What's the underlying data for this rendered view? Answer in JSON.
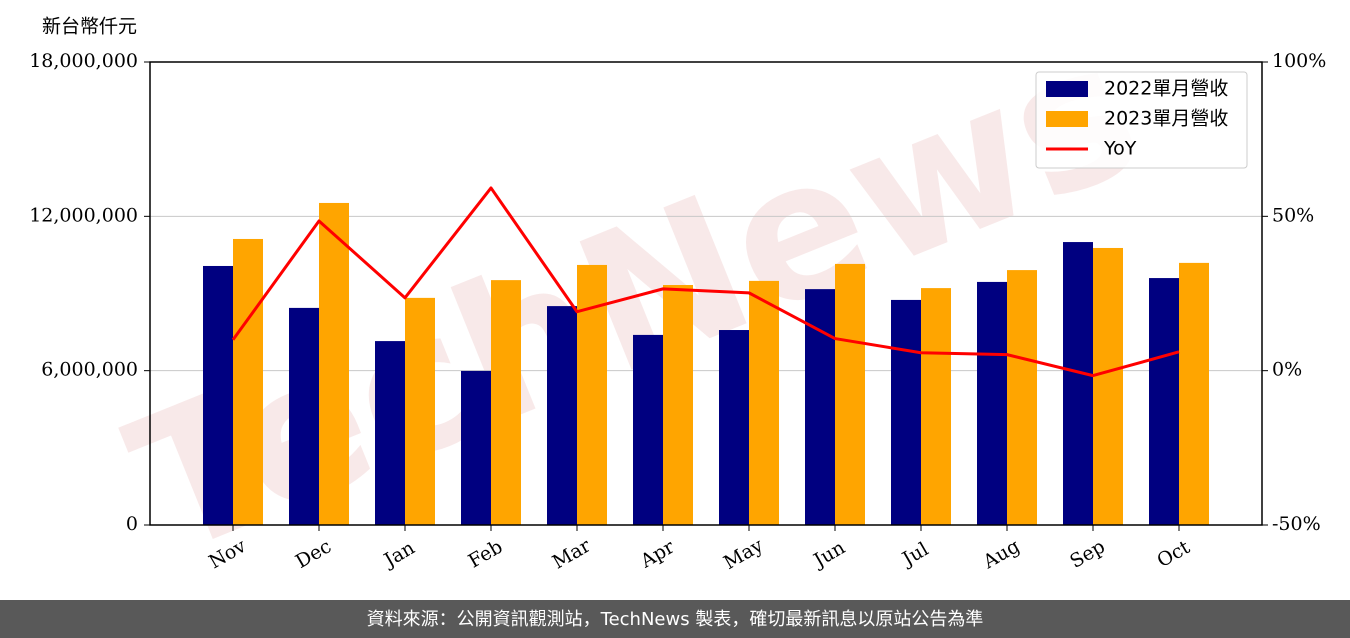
{
  "chart_data": {
    "type": "bar_line",
    "y_label": "新台幣仟元",
    "watermark": "TechNews",
    "source": "資料來源：公開資訊觀測站，TechNews 製表，確切最新訊息以原站公告為準",
    "categories": [
      "Nov",
      "Dec",
      "Jan",
      "Feb",
      "Mar",
      "Apr",
      "May",
      "Jun",
      "Jul",
      "Aug",
      "Sep",
      "Oct"
    ],
    "series": [
      {
        "name": "2022單月營收",
        "color": "#000080",
        "values": [
          10070000,
          8440000,
          7150000,
          5990000,
          8510000,
          7390000,
          7580000,
          9170000,
          8750000,
          9450000,
          11000000,
          9600000
        ]
      },
      {
        "name": "2023單月營收",
        "color": "#ffa500",
        "values": [
          11120000,
          12520000,
          8830000,
          9520000,
          10110000,
          9330000,
          9490000,
          10150000,
          9210000,
          9910000,
          10770000,
          10190000
        ]
      },
      {
        "name": "YoY",
        "color": "#ff0000",
        "axis": "y2",
        "values": [
          10,
          48.5,
          23.6,
          59.2,
          19.1,
          26.5,
          25.2,
          10.4,
          5.8,
          5.2,
          -1.6,
          6.1
        ]
      }
    ],
    "ylim": [
      0,
      18000000
    ],
    "yticks": [
      0,
      {
        "value": 6000000,
        "label": "6,000,000"
      },
      {
        "value": 12000000,
        "label": "12,000,000"
      },
      {
        "value": 18000000,
        "label": "18,000,000"
      }
    ],
    "y2lim": [
      -50,
      100
    ],
    "y2ticks": [
      {
        "value": -50,
        "label": "-50%"
      },
      {
        "value": 0,
        "label": "0%"
      },
      {
        "value": 50,
        "label": "50%"
      },
      {
        "value": 100,
        "label": "100%"
      }
    ],
    "grid": true,
    "legend": "upper right"
  }
}
